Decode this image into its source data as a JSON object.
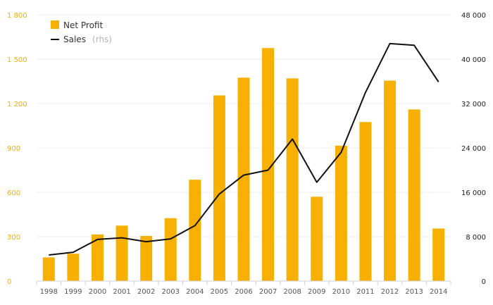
{
  "chart_data": {
    "type": "bar",
    "categories": [
      "1998",
      "1999",
      "2000",
      "2001",
      "2002",
      "2003",
      "2004",
      "2005",
      "2006",
      "2007",
      "2008",
      "2009",
      "2010",
      "2011",
      "2012",
      "2013",
      "2014"
    ],
    "series": [
      {
        "name": "Net Profit",
        "type": "bar",
        "axis": "left",
        "color": "#f7b000",
        "values": [
          160,
          185,
          315,
          375,
          305,
          425,
          685,
          1255,
          1375,
          1575,
          1370,
          570,
          915,
          1075,
          1355,
          1160,
          355
        ]
      },
      {
        "name": "Sales",
        "name_suffix": "(rhs)",
        "type": "line",
        "axis": "right",
        "color": "#111111",
        "values": [
          4700,
          5200,
          7500,
          7800,
          7100,
          7600,
          10000,
          15700,
          19100,
          20000,
          25600,
          17800,
          23200,
          34000,
          42800,
          42500,
          35900
        ]
      }
    ],
    "y_left": {
      "ylim": [
        0,
        1800
      ],
      "ticks": [
        0,
        300,
        600,
        900,
        1200,
        1500,
        1800
      ],
      "tick_labels": [
        "0",
        "300",
        "600",
        "900",
        "1 200",
        "1 500",
        "1 800"
      ]
    },
    "y_right": {
      "ylim": [
        0,
        48000
      ],
      "ticks": [
        0,
        8000,
        16000,
        24000,
        32000,
        40000,
        48000
      ],
      "tick_labels": [
        "0",
        "8 000",
        "16 000",
        "24 000",
        "32 000",
        "40 000",
        "48 000"
      ]
    },
    "grid": true,
    "legend_position": "top-left"
  }
}
